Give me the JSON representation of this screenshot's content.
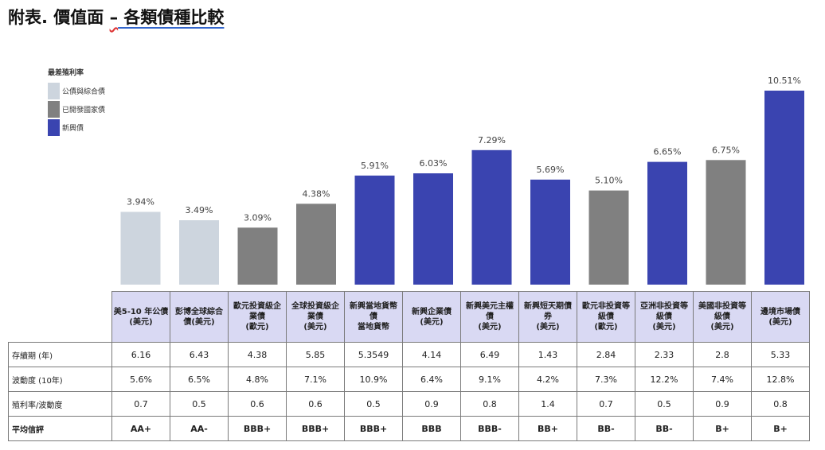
{
  "title": {
    "prefix": "附表. 價值面 ",
    "dash": "–",
    "rest": " 各類債種比較"
  },
  "legend": {
    "title": "最差殖利率",
    "items": [
      {
        "label": "公債與綜合債",
        "color": "#cdd5de"
      },
      {
        "label": "已開發國家債",
        "color": "#808080"
      },
      {
        "label": "新興債",
        "color": "#3a44b0"
      }
    ]
  },
  "chart_data": {
    "type": "bar",
    "ylabel": "最差殖利率",
    "categories": [
      "美5-10 年公債(美元)",
      "彭博全球綜合債(美元)",
      "歐元投資級企業債(歐元)",
      "全球投資級企業債(美元)",
      "新興當地貨幣債 當地貨幣",
      "新興企業債(美元)",
      "新興美元主權債(美元)",
      "新興短天期債券(美元)",
      "歐元非投資等級債(歐元)",
      "亞洲非投資等級債(美元)",
      "美國非投資等級債(美元)",
      "邊境市場債(美元)"
    ],
    "values": [
      3.94,
      3.49,
      3.09,
      4.38,
      5.91,
      6.03,
      7.29,
      5.69,
      5.1,
      6.65,
      6.75,
      10.51
    ],
    "value_labels": [
      "3.94%",
      "3.49%",
      "3.09%",
      "4.38%",
      "5.91%",
      "6.03%",
      "7.29%",
      "5.69%",
      "5.10%",
      "6.65%",
      "6.75%",
      "10.51%"
    ],
    "groups": [
      0,
      0,
      1,
      1,
      2,
      2,
      2,
      2,
      1,
      2,
      1,
      2
    ],
    "ylim": [
      0,
      11.2
    ]
  },
  "table": {
    "headers": [
      [
        "美5-10 年公債",
        "(美元)"
      ],
      [
        "彭博全球綜合",
        "債(美元)"
      ],
      [
        "歐元投資級企",
        "業債",
        "(歐元)"
      ],
      [
        "全球投資級企",
        "業債",
        "(美元)"
      ],
      [
        "新興當地貨幣",
        "債",
        "當地貨幣"
      ],
      [
        "新興企業債",
        "(美元)"
      ],
      [
        "新興美元主權",
        "債",
        "(美元)"
      ],
      [
        "新興短天期債",
        "券",
        "(美元)"
      ],
      [
        "歐元非投資等",
        "級債",
        "(歐元)"
      ],
      [
        "亞洲非投資等",
        "級債",
        "(美元)"
      ],
      [
        "美國非投資等",
        "級債",
        "(美元)"
      ],
      [
        "邊境市場債",
        "(美元)"
      ]
    ],
    "rows": [
      {
        "label": "存續期 (年)",
        "values": [
          "6.16",
          "6.43",
          "4.38",
          "5.85",
          "5.3549",
          "4.14",
          "6.49",
          "1.43",
          "2.84",
          "2.33",
          "2.8",
          "5.33"
        ]
      },
      {
        "label": "波動度 (10年)",
        "values": [
          "5.6%",
          "6.5%",
          "4.8%",
          "7.1%",
          "10.9%",
          "6.4%",
          "9.1%",
          "4.2%",
          "7.3%",
          "12.2%",
          "7.4%",
          "12.8%"
        ]
      },
      {
        "label": "殖利率/波動度",
        "values": [
          "0.7",
          "0.5",
          "0.6",
          "0.6",
          "0.5",
          "0.9",
          "0.8",
          "1.4",
          "0.7",
          "0.5",
          "0.9",
          "0.8"
        ]
      },
      {
        "label": "平均信評",
        "values": [
          "AA+",
          "AA-",
          "BBB+",
          "BBB+",
          "BBB+",
          "BBB",
          "BBB-",
          "BB+",
          "BB-",
          "BB-",
          "B+",
          "B+"
        ]
      }
    ]
  }
}
